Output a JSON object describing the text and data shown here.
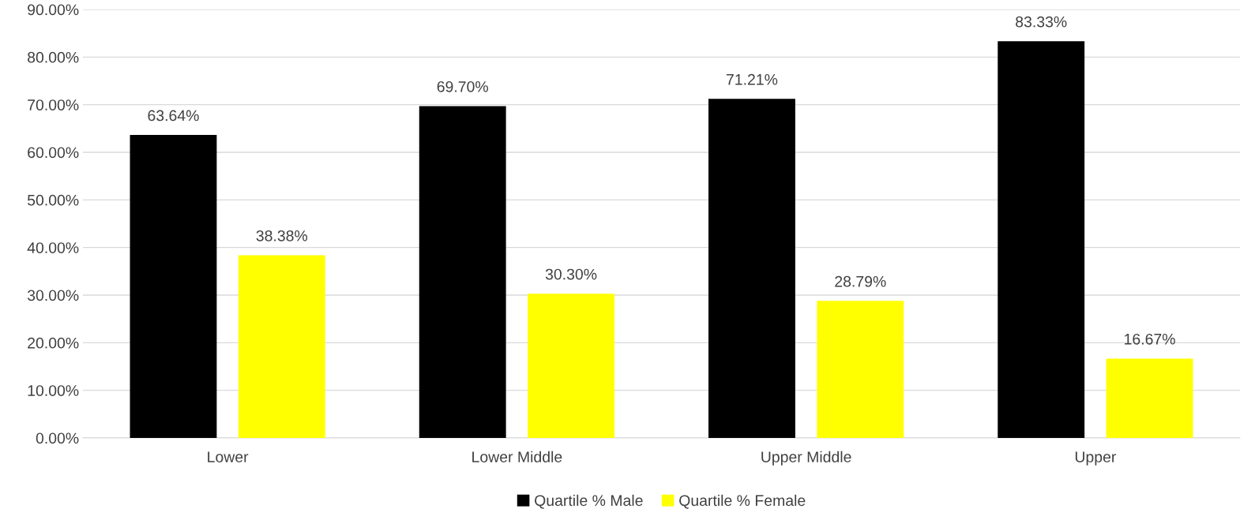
{
  "chart_data": {
    "type": "bar",
    "categories": [
      "Lower",
      "Lower Middle",
      "Upper Middle",
      "Upper"
    ],
    "series": [
      {
        "name": "Quartile % Male",
        "color": "#000000",
        "values": [
          63.64,
          69.7,
          71.21,
          83.33
        ],
        "value_labels": [
          "63.64%",
          "69.70%",
          "71.21%",
          "83.33%"
        ]
      },
      {
        "name": "Quartile % Female",
        "color": "#ffff00",
        "values": [
          38.38,
          30.3,
          28.79,
          16.67
        ],
        "value_labels": [
          "38.38%",
          "30.30%",
          "28.79%",
          "16.67%"
        ]
      }
    ],
    "ylim": [
      0,
      90
    ],
    "yticks": [
      {
        "value": 0,
        "label": "0.00%"
      },
      {
        "value": 10,
        "label": "10.00%"
      },
      {
        "value": 20,
        "label": "20.00%"
      },
      {
        "value": 30,
        "label": "30.00%"
      },
      {
        "value": 40,
        "label": "40.00%"
      },
      {
        "value": 50,
        "label": "50.00%"
      },
      {
        "value": 60,
        "label": "60.00%"
      },
      {
        "value": 70,
        "label": "70.00%"
      },
      {
        "value": 80,
        "label": "80.00%"
      },
      {
        "value": 90,
        "label": "90.00%"
      }
    ],
    "grid": "y",
    "legend": "bottom"
  }
}
